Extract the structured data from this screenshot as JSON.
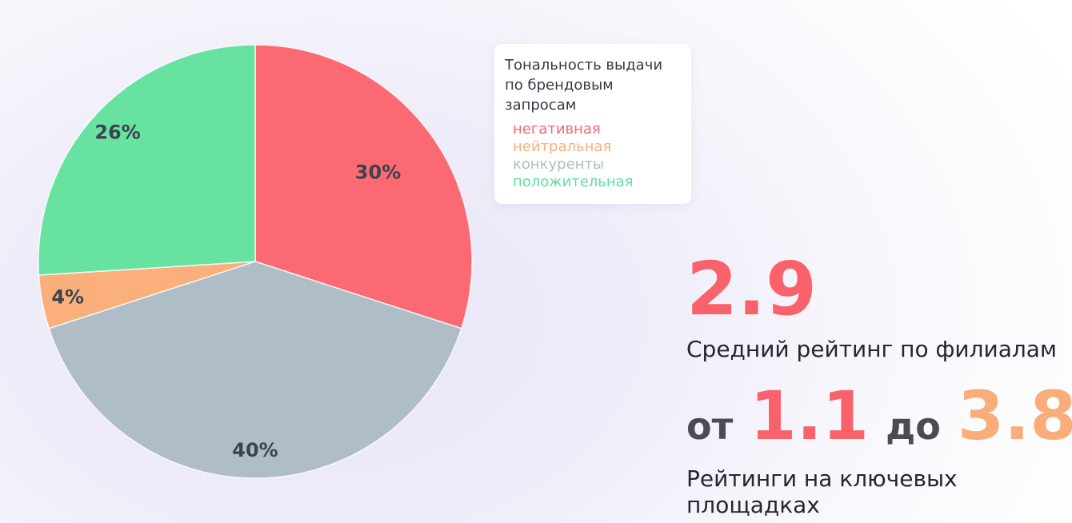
{
  "chart_data": {
    "type": "pie",
    "title": "Тональность выдачи по брендовым запросам",
    "direction": "clockwise",
    "start_angle_deg": 0,
    "label_color": "#3E434D",
    "slices": [
      {
        "name": "negative",
        "label": "негативная",
        "value": 30,
        "display": "30%",
        "color": "#FB6A72",
        "label_r": 0.7
      },
      {
        "name": "competitors",
        "label": "конкуренты",
        "value": 40,
        "display": "40%",
        "color": "#AFBEC6",
        "label_r": 0.87
      },
      {
        "name": "neutral",
        "label": "нейтральная",
        "value": 4,
        "display": "4%",
        "color": "#FBB07B",
        "label_r": 0.88
      },
      {
        "name": "positive",
        "label": "положительная",
        "value": 26,
        "display": "26%",
        "color": "#67E2A1",
        "label_r": 0.87
      }
    ]
  },
  "legend": {
    "title_line1": "Тональность выдачи",
    "title_line2": "по брендовым запросам",
    "items": [
      {
        "name": "negative",
        "label": "негативная",
        "color": "#F8656E"
      },
      {
        "name": "neutral",
        "label": "нейтральная",
        "color": "#FBAF7C"
      },
      {
        "name": "competitors",
        "label": "конкуренты",
        "color": "#AEBDC6"
      },
      {
        "name": "positive",
        "label": "положительная",
        "color": "#5CE09C"
      }
    ]
  },
  "stats": {
    "average": {
      "value": "2.9",
      "color": "#F9626B",
      "caption": "Средний рейтинг по филиалам"
    },
    "range": {
      "from_word": "от",
      "min_value": "1.1",
      "min_color": "#F9626B",
      "to_word": "до",
      "max_value": "3.8",
      "max_color": "#F9AE79",
      "caption": "Рейтинги на ключевых площадках"
    }
  },
  "colors": {
    "background_tint": "#E8E5F7",
    "card_background": "#FFFFFF",
    "caption_text": "#24272C",
    "range_word_text": "#4A4C51"
  }
}
